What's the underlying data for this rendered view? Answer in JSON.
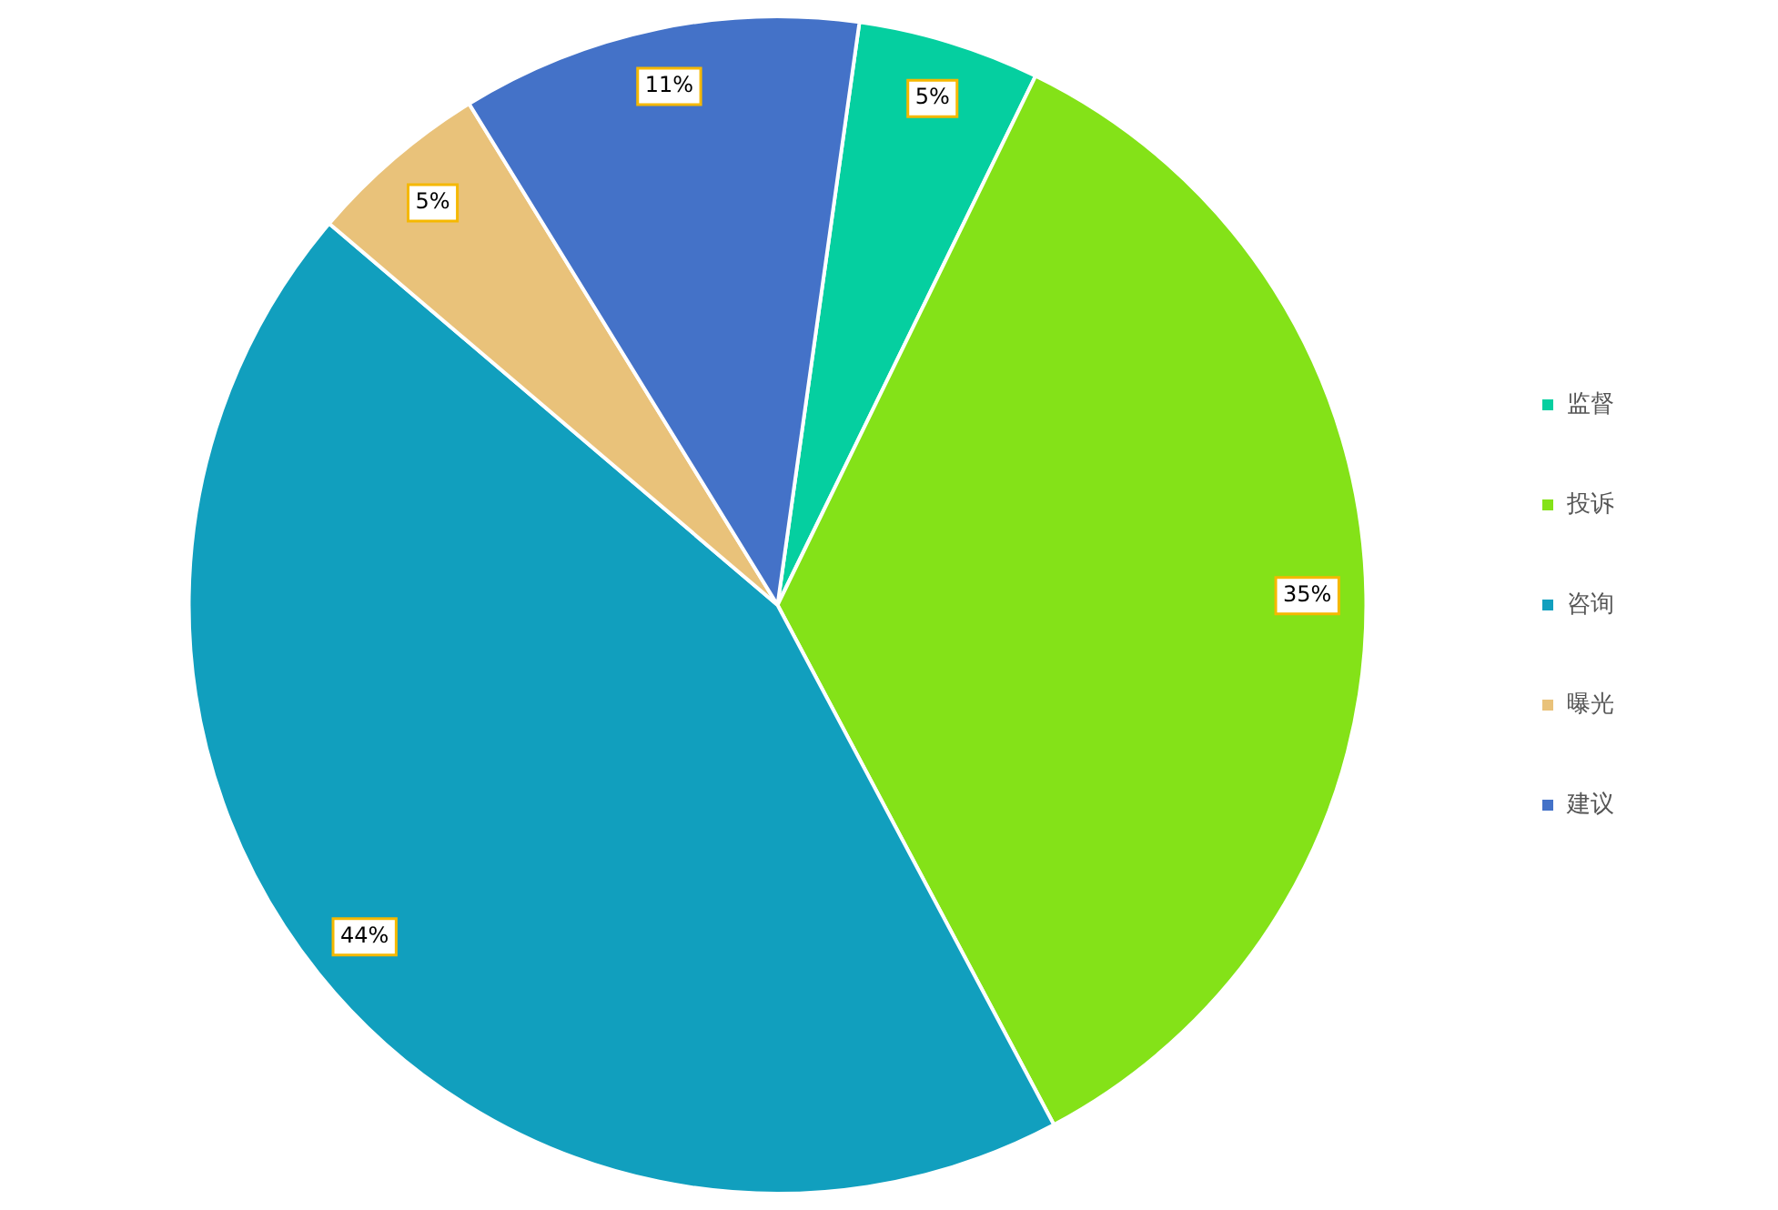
{
  "chart_data": {
    "type": "pie",
    "categories": [
      "监督",
      "投诉",
      "咨询",
      "曝光",
      "建议"
    ],
    "values": [
      5,
      35,
      44,
      5,
      11
    ],
    "value_labels": [
      "5%",
      "35%",
      "44%",
      "5%",
      "11%"
    ],
    "colors": [
      "#05cfa0",
      "#84e218",
      "#119fbe",
      "#e9c27a",
      "#4472c8"
    ],
    "legend": "right"
  }
}
